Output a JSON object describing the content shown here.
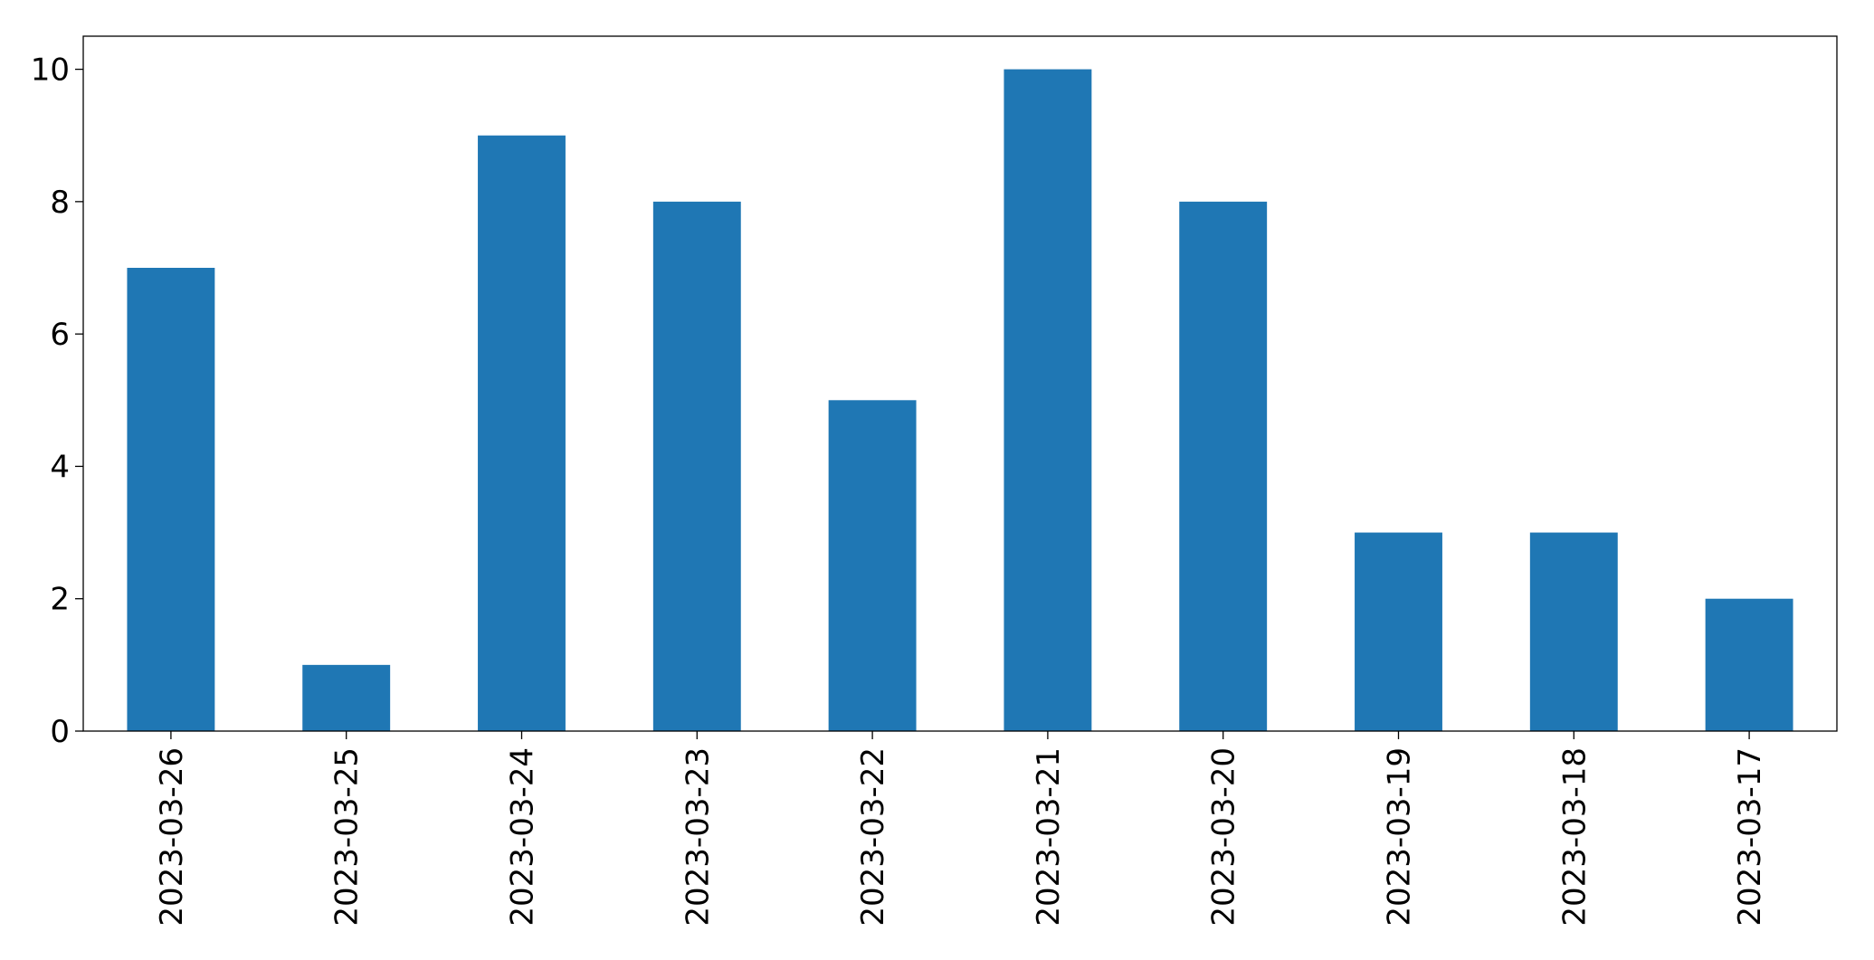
{
  "chart_data": {
    "type": "bar",
    "categories": [
      "2023-03-26",
      "2023-03-25",
      "2023-03-24",
      "2023-03-23",
      "2023-03-22",
      "2023-03-21",
      "2023-03-20",
      "2023-03-19",
      "2023-03-18",
      "2023-03-17"
    ],
    "values": [
      7,
      1,
      9,
      8,
      5,
      10,
      8,
      3,
      3,
      2
    ],
    "color": "#1f77b4",
    "ylim": [
      0,
      10.5
    ],
    "yticks": [
      0,
      2,
      4,
      6,
      8,
      10
    ],
    "grid": false
  }
}
